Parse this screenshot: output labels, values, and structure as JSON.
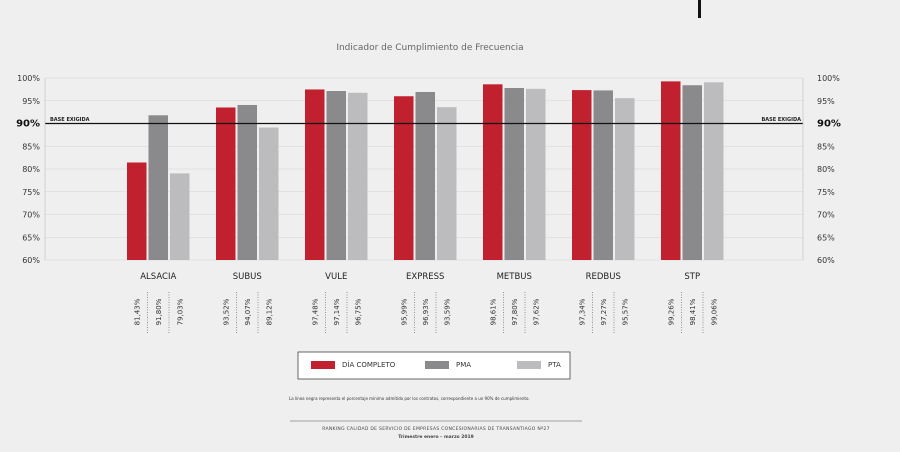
{
  "chart_data": {
    "type": "bar",
    "title": "Indicador de Cumplimiento de Frecuencia",
    "categories": [
      "ALSACIA",
      "SUBUS",
      "VULE",
      "EXPRESS",
      "METBUS",
      "REDBUS",
      "STP"
    ],
    "series": [
      {
        "name": "DÍA COMPLETO",
        "color": "#c1212f",
        "values": [
          81.43,
          93.52,
          97.48,
          95.99,
          98.61,
          97.34,
          99.26
        ],
        "labels": [
          "81,43%",
          "93,52%",
          "97,48%",
          "95,99%",
          "98,61%",
          "97,34%",
          "99,26%"
        ]
      },
      {
        "name": "PMA",
        "color": "#8a8a8c",
        "values": [
          91.8,
          94.07,
          97.14,
          96.93,
          97.8,
          97.27,
          98.41
        ],
        "labels": [
          "91,80%",
          "94,07%",
          "97,14%",
          "96,93%",
          "97,80%",
          "97,27%",
          "98,41%"
        ]
      },
      {
        "name": "PTA",
        "color": "#bcbcbe",
        "values": [
          79.03,
          89.12,
          96.75,
          93.59,
          97.62,
          95.57,
          99.06
        ],
        "labels": [
          "79,03%",
          "89,12%",
          "96,75%",
          "93,59%",
          "97,62%",
          "95,57%",
          "99,06%"
        ]
      }
    ],
    "ylim": [
      60,
      100
    ],
    "yticks": [
      100,
      95,
      90,
      85,
      80,
      75,
      70,
      65,
      60
    ],
    "ytick_labels": [
      "100%",
      "95%",
      "90%",
      "85%",
      "80%",
      "75%",
      "70%",
      "65%",
      "60%"
    ],
    "reference_line": {
      "value": 90,
      "label": "BASE EXIGIDA"
    },
    "xlabel": "",
    "ylabel": ""
  },
  "footnote": "La línea negra representa el porcentaje mínimo admitido por los contratos, correspondiente a un 90% de cumplimiento.",
  "footer": {
    "line1": "RANKING CALIDAD DE SERVICIO DE EMPRESAS CONCESIONARIAS DE TRANSANTIAGO  Nº27",
    "line2": "Trimestre enero – marzo 2019"
  }
}
